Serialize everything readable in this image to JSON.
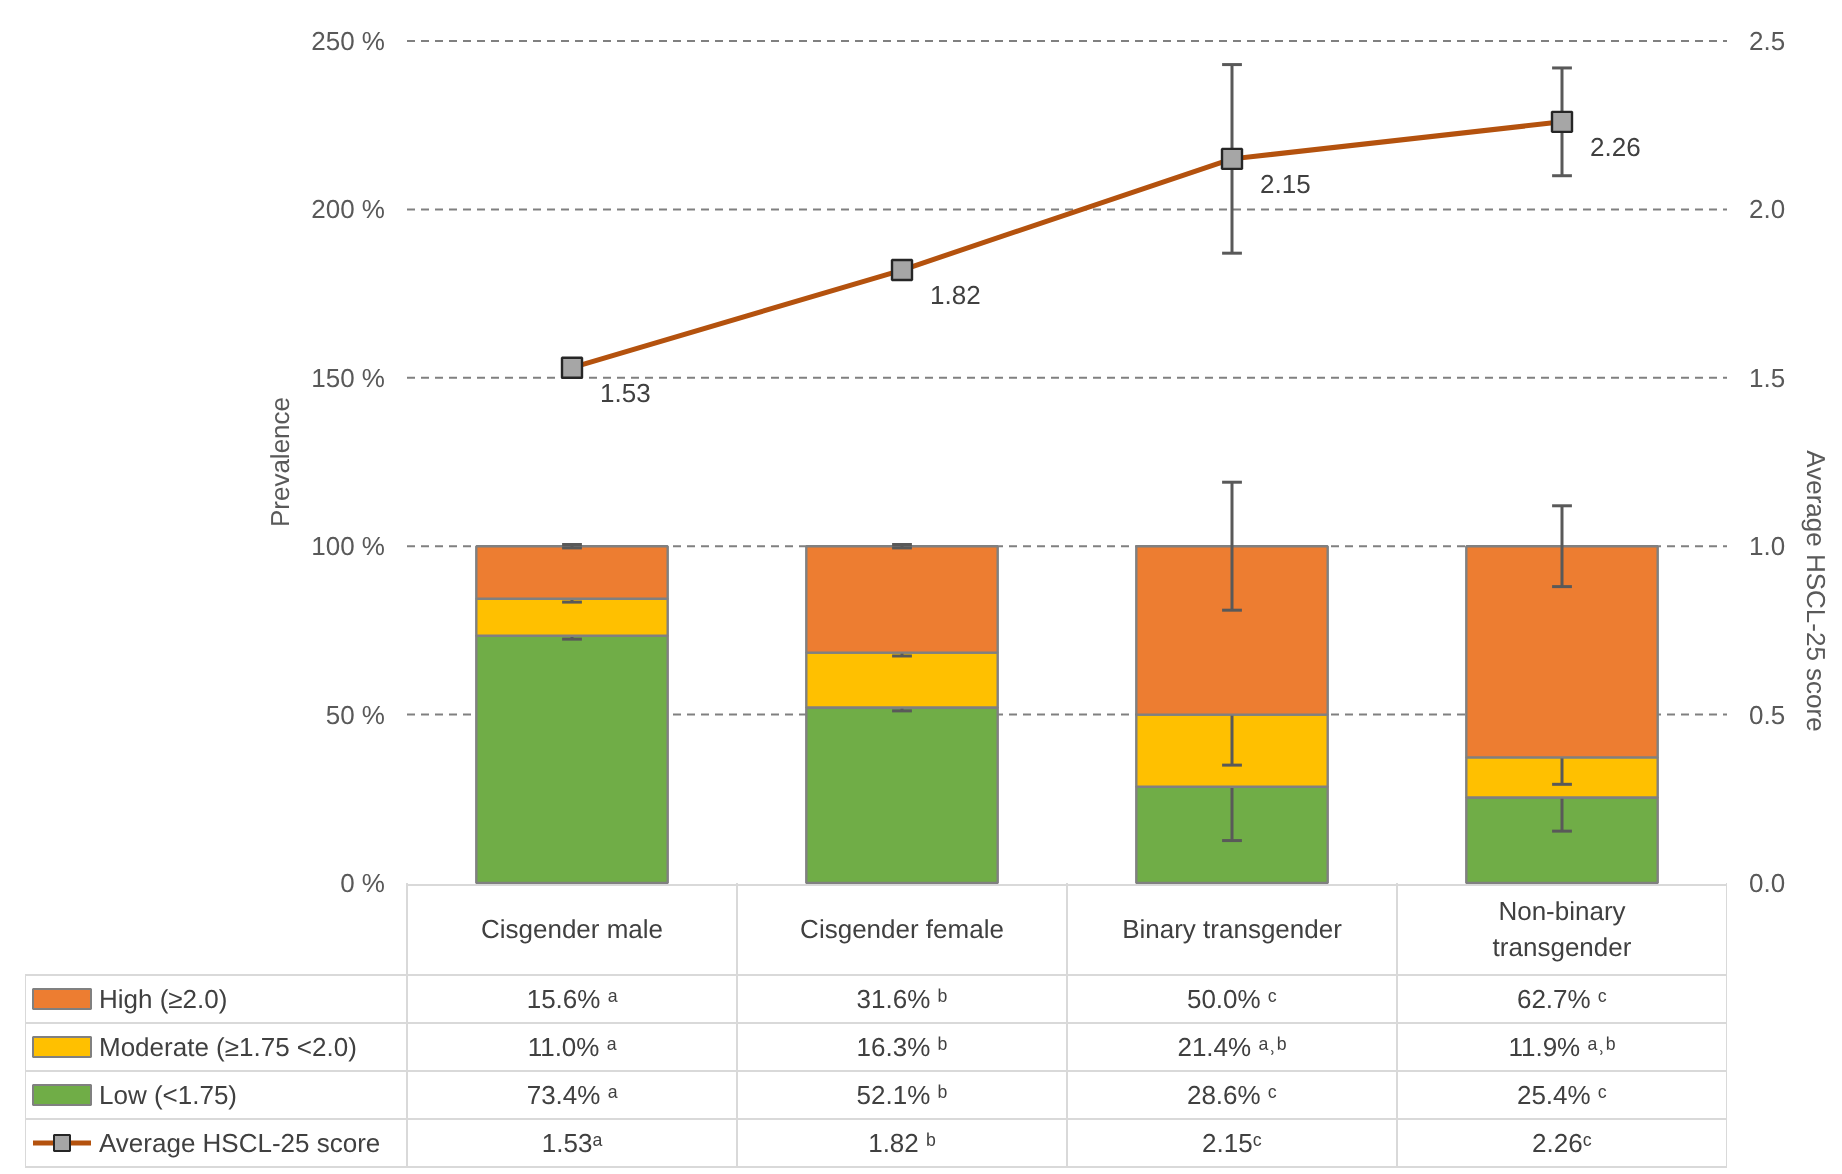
{
  "chart_data": {
    "type": "bar",
    "stacked": true,
    "ylabel": "Prevalence",
    "y2label": "Average HSCL-25 score",
    "categories": [
      "Cisgender male",
      "Cisgender female",
      "Binary transgender",
      "Non-binary transgender"
    ],
    "ylim": [
      0,
      250
    ],
    "yticks": [
      {
        "value": 0,
        "label": "0 %"
      },
      {
        "value": 50,
        "label": "50 %"
      },
      {
        "value": 100,
        "label": "100 %"
      },
      {
        "value": 150,
        "label": "150 %"
      },
      {
        "value": 200,
        "label": "200 %"
      },
      {
        "value": 250,
        "label": "250 %"
      }
    ],
    "y2lim": [
      0,
      2.5
    ],
    "y2ticks": [
      {
        "value": 0,
        "label": "0.0"
      },
      {
        "value": 0.5,
        "label": "0.5"
      },
      {
        "value": 1,
        "label": "1.0"
      },
      {
        "value": 1.5,
        "label": "1.5"
      },
      {
        "value": 2,
        "label": "2.0"
      },
      {
        "value": 2.5,
        "label": "2.5"
      }
    ],
    "grid": "y",
    "legend": "bottom",
    "series": [
      {
        "name": "Low (<1.75)",
        "color": "#70ad47",
        "values": [
          73.4,
          52.1,
          28.6,
          25.4
        ],
        "errors": [
          1,
          1,
          16,
          10
        ],
        "value_labels": [
          "73.4% ᵃ",
          "52.1% ᵇ",
          "28.6% ᶜ",
          "25.4% ᶜ"
        ]
      },
      {
        "name": "Moderate  (≥1.75 <2.0)",
        "color": "#ffc000",
        "values": [
          11.0,
          16.3,
          21.4,
          11.9
        ],
        "errors": [
          1,
          1,
          15,
          8
        ],
        "value_labels": [
          "11.0% ᵃ",
          "16.3% ᵇ",
          "21.4% ᵃ˒ᵇ",
          "11.9% ᵃ˒ᵇ"
        ]
      },
      {
        "name": "High (≥2.0)",
        "color": "#ed7d31",
        "values": [
          15.6,
          31.6,
          50.0,
          62.7
        ],
        "errors": [
          0.5,
          0.5,
          19,
          12
        ],
        "value_labels": [
          "15.6% ᵃ",
          "31.6% ᵇ",
          "50.0% ᶜ",
          "62.7% ᶜ"
        ]
      },
      {
        "name": "Average HSCL-25 score",
        "type": "line",
        "axis": "y2",
        "color": "#b4520e",
        "marker": "square",
        "values": [
          1.53,
          1.82,
          2.15,
          2.26
        ],
        "errors": [
          null,
          null,
          0.28,
          0.16
        ],
        "value_labels": [
          "1.53",
          "1.82",
          "2.15",
          "2.26"
        ]
      }
    ],
    "annotations": [
      "1.53ᵃ",
      "1.82 ᵇ",
      "2.15ᶜ",
      "2.26ᶜ"
    ]
  }
}
